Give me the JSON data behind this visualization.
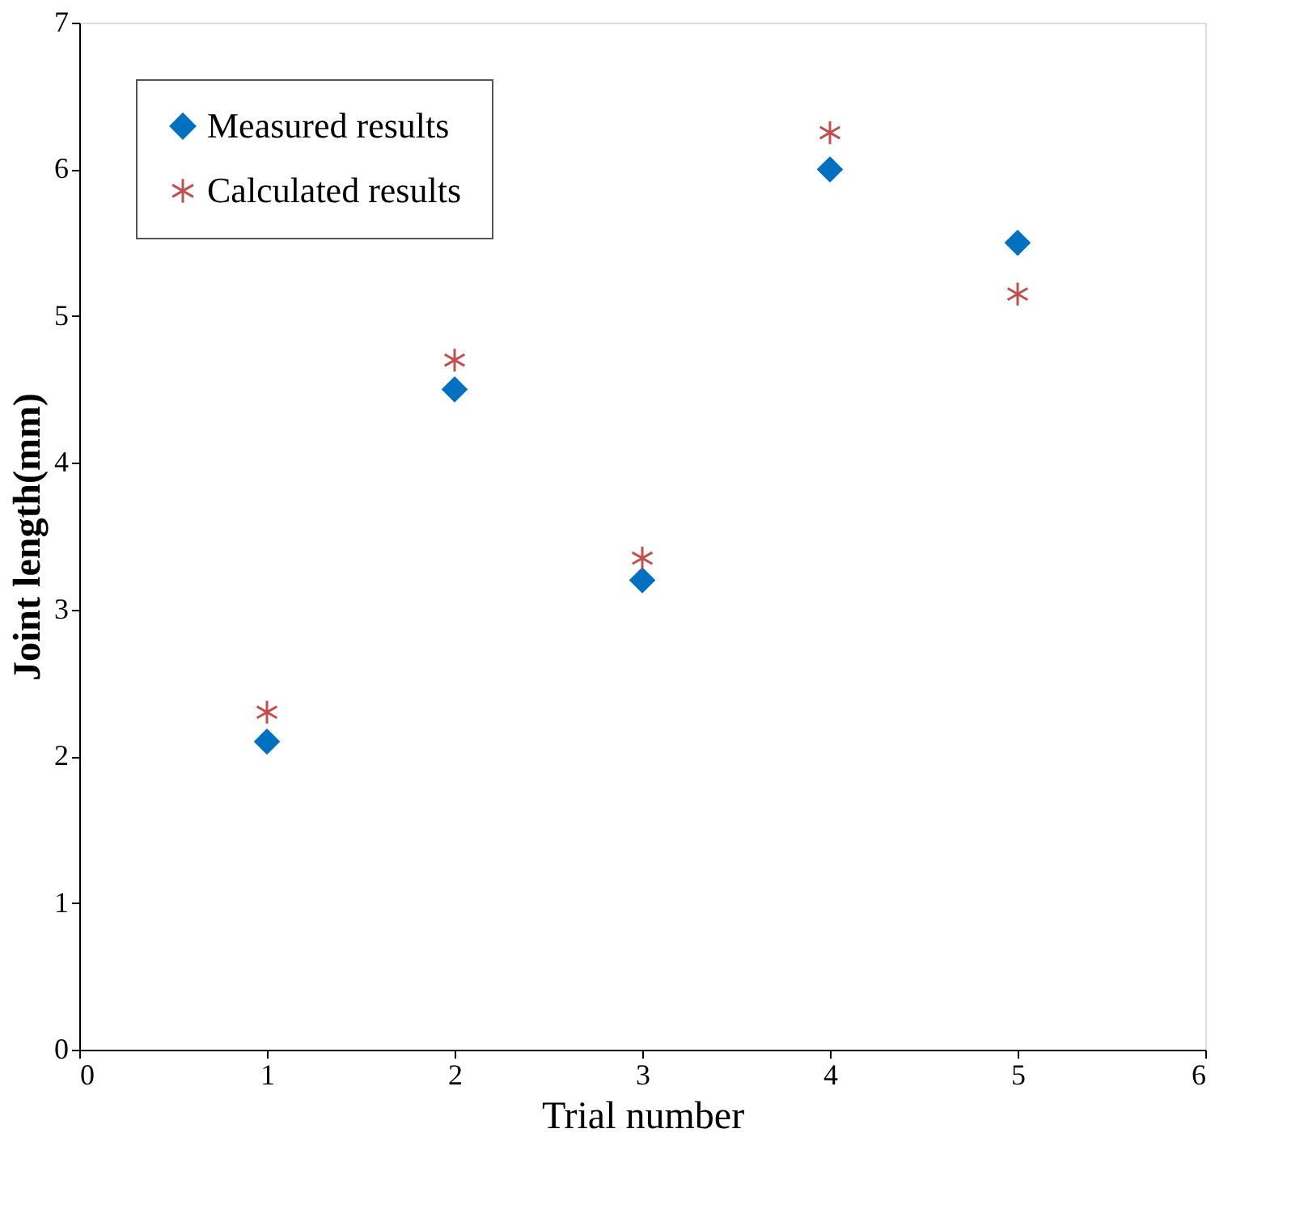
{
  "chart_data": {
    "type": "scatter",
    "xlabel": "Trial number",
    "ylabel": "Joint length(mm)",
    "x": [
      1,
      2,
      3,
      4,
      5
    ],
    "series": [
      {
        "name": "Measured results",
        "color": "#0070c0",
        "marker": "diamond",
        "values": [
          2.1,
          4.5,
          3.2,
          6.0,
          5.5
        ]
      },
      {
        "name": "Calculated results",
        "color": "#c0504d",
        "marker": "cross",
        "values": [
          2.3,
          4.7,
          3.35,
          6.25,
          5.15
        ]
      }
    ],
    "xlim": [
      0,
      6
    ],
    "xticks": [
      0,
      1,
      2,
      3,
      4,
      5,
      6
    ],
    "ylim": [
      0,
      7
    ],
    "yticks": [
      0,
      1,
      2,
      3,
      4,
      5,
      6,
      7
    ],
    "grid": false,
    "legend": "top left"
  }
}
